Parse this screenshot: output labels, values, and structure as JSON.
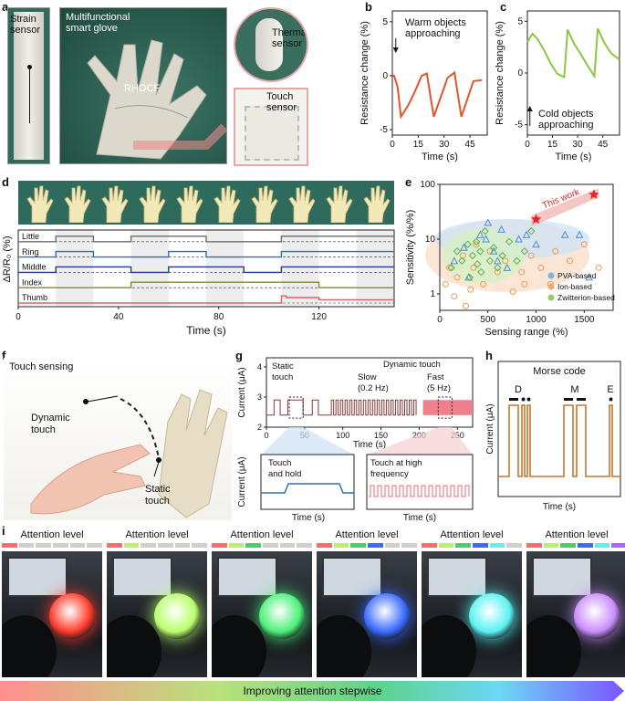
{
  "panels": {
    "a": {
      "letter": "a",
      "strain_label": "Strain\nsensor",
      "glove_title": "Multifunctional\nsmart glove",
      "rhocf_label": "RHOCF",
      "thermal_label": "Thermal\nsensor",
      "touch_label": "Touch\nsensor"
    },
    "b": {
      "letter": "b"
    },
    "c": {
      "letter": "c"
    },
    "d": {
      "letter": "d"
    },
    "e": {
      "letter": "e"
    },
    "f": {
      "letter": "f",
      "title": "Touch sensing",
      "dynamic_label": "Dynamic\ntouch",
      "static_label": "Static\ntouch"
    },
    "g": {
      "letter": "g"
    },
    "h": {
      "letter": "h"
    },
    "i": {
      "letter": "i",
      "tile_label": "Attention level",
      "bottom_label": "Improving attention stepwise"
    }
  },
  "chart_data": [
    {
      "id": "b",
      "type": "line",
      "xlabel": "Time (s)",
      "ylabel": "Resistance change (%)",
      "xlim": [
        0,
        55
      ],
      "ylim": [
        -5.5,
        6
      ],
      "xticks": [
        0,
        15,
        30,
        45
      ],
      "yticks": [
        -5,
        0,
        5
      ],
      "annotation": "Warm objects\napproaching",
      "color": "#e5532b",
      "x": [
        0,
        1,
        3,
        5,
        9,
        13,
        17,
        20,
        24,
        28,
        32,
        36,
        40,
        43,
        47,
        52
      ],
      "y": [
        0,
        0,
        -1,
        -3.8,
        -2.8,
        -1.5,
        0,
        0.2,
        -3.8,
        -2,
        -0.2,
        0.3,
        -3.8,
        -2.4,
        -0.5,
        -0.4
      ]
    },
    {
      "id": "c",
      "type": "line",
      "xlabel": "Time (s)",
      "ylabel": "Resistance change (%)",
      "xlim": [
        0,
        55
      ],
      "ylim": [
        -6,
        6
      ],
      "xticks": [
        0,
        15,
        30,
        45
      ],
      "yticks": [
        -5,
        0,
        5
      ],
      "annotation": "Cold objects\napproaching",
      "color": "#8cc63f",
      "x": [
        0,
        3,
        6,
        10,
        14,
        18,
        22,
        24,
        28,
        32,
        36,
        40,
        42,
        46,
        50,
        55
      ],
      "y": [
        3,
        3.8,
        3.3,
        2.2,
        0.9,
        -0.1,
        -0.4,
        4.2,
        2.8,
        1.8,
        0.7,
        -0.3,
        4.3,
        2.9,
        1.9,
        1.3
      ]
    },
    {
      "id": "d",
      "type": "line",
      "xlabel": "Time (s)",
      "ylabel": "ΔR/R₀ (%)",
      "xlim": [
        0,
        150
      ],
      "xticks": [
        0,
        40,
        80,
        120
      ],
      "series": [
        {
          "name": "Little",
          "color": "#6d6d6d",
          "x": [
            0,
            15,
            15,
            30,
            30,
            45,
            45,
            75,
            75,
            105,
            105,
            150
          ],
          "y": [
            0,
            0,
            1,
            1,
            0,
            0,
            1,
            1,
            0,
            0,
            1,
            1
          ]
        },
        {
          "name": "Ring",
          "color": "#2e6fb5",
          "x": [
            0,
            15,
            15,
            30,
            30,
            60,
            60,
            75,
            75,
            105,
            105,
            150
          ],
          "y": [
            0,
            0,
            1,
            1,
            0,
            0,
            1,
            1,
            0,
            0,
            1,
            1
          ]
        },
        {
          "name": "Middle",
          "color": "#1b3f8b",
          "x": [
            0,
            15,
            15,
            45,
            45,
            60,
            60,
            90,
            90,
            105,
            105,
            150
          ],
          "y": [
            0,
            0,
            1,
            1,
            0,
            0,
            1,
            1,
            0,
            0,
            1,
            1
          ]
        },
        {
          "name": "Index",
          "color": "#8a8a1a",
          "x": [
            0,
            45,
            45,
            120,
            120,
            150
          ],
          "y": [
            0,
            0,
            1,
            1,
            0,
            0
          ]
        },
        {
          "name": "Thumb",
          "color": "#e06060",
          "x": [
            0,
            105,
            105,
            107,
            107,
            120,
            120,
            150
          ],
          "y": [
            0,
            0,
            1.3,
            1.3,
            1,
            1,
            0.6,
            0.6
          ]
        }
      ]
    },
    {
      "id": "e",
      "type": "scatter",
      "xlabel": "Sensing range (%)",
      "ylabel": "Sensitivity (%/%)",
      "xlim": [
        0,
        1800
      ],
      "xticks": [
        0,
        500,
        1000,
        1500
      ],
      "ylog": true,
      "ylim": [
        0.5,
        100
      ],
      "yticks": [
        1,
        10,
        100
      ],
      "annotation": "This work",
      "legend": [
        "PVA-based",
        "Ion-based",
        "Zwitterion-based"
      ],
      "legend_colors": [
        "#7fb3e6",
        "#f4a96a",
        "#8fd06a"
      ],
      "stars": [
        {
          "x": 1000,
          "y": 23
        },
        {
          "x": 1600,
          "y": 65
        }
      ],
      "pva": {
        "x": [
          150,
          300,
          420,
          500,
          560,
          640,
          700,
          820,
          900,
          1000,
          1300,
          1450,
          1550,
          250,
          480,
          600
        ],
        "y": [
          4,
          2,
          12,
          20,
          6,
          15,
          3,
          10,
          12,
          8,
          12,
          12,
          2,
          7,
          10,
          4
        ]
      },
      "ion": {
        "x": [
          60,
          100,
          180,
          240,
          320,
          380,
          450,
          520,
          600,
          680,
          760,
          850,
          950,
          1050,
          1150,
          1350,
          1650,
          1500,
          1200,
          880,
          350,
          270,
          150
        ],
        "y": [
          1.5,
          3,
          2,
          5,
          1.2,
          8,
          1.5,
          6,
          2.5,
          4,
          1.1,
          2.5,
          5,
          3,
          1.5,
          4,
          3,
          8,
          6,
          1.5,
          3,
          0.6,
          0.9
        ]
      },
      "zw": {
        "x": [
          120,
          180,
          230,
          290,
          340,
          380,
          420,
          470,
          520,
          560,
          600,
          650,
          720,
          800,
          880,
          950,
          430,
          390,
          310
        ],
        "y": [
          3,
          6,
          4,
          8,
          5,
          9,
          6,
          14,
          4,
          7,
          3,
          5,
          9,
          4,
          6,
          14,
          2.5,
          3.5,
          2
        ]
      }
    },
    {
      "id": "g",
      "type": "line",
      "xlabel": "Time (s)",
      "ylabel": "Current (μA)",
      "xticks": [
        0,
        50,
        100,
        150,
        200,
        250
      ],
      "yticks": [
        2,
        3,
        4
      ],
      "labels": [
        "Static\ntouch",
        "Dynamic touch",
        "Slow\n(0.2 Hz)",
        "Fast\n(5 Hz)",
        "Touch\nand hold",
        "Touch at high\nfrequency"
      ]
    },
    {
      "id": "h",
      "type": "line",
      "title": "Morse code",
      "xlabel": "Time (s)",
      "ylabel": "Current (μA)",
      "letters": [
        "D",
        "M",
        "E"
      ],
      "color": "#c8742c"
    }
  ],
  "i_tiles": [
    {
      "level": 1,
      "glow": "#ff3a2a"
    },
    {
      "level": 2,
      "glow": "#b8ff6a"
    },
    {
      "level": 3,
      "glow": "#4cf07a"
    },
    {
      "level": 4,
      "glow": "#3a6bff"
    },
    {
      "level": 5,
      "glow": "#5af2f2"
    },
    {
      "level": 6,
      "glow": "#c98cff"
    }
  ],
  "i_segment_colors": [
    "#ff6b6b",
    "#b8f06a",
    "#45d06a",
    "#3a6bff",
    "#5af2f2",
    "#a866ff"
  ],
  "colors": {
    "photo_bg": "#1f5a4a",
    "glove": "#d9d6c9",
    "finger_panel_bg": "#2f6b5d"
  }
}
